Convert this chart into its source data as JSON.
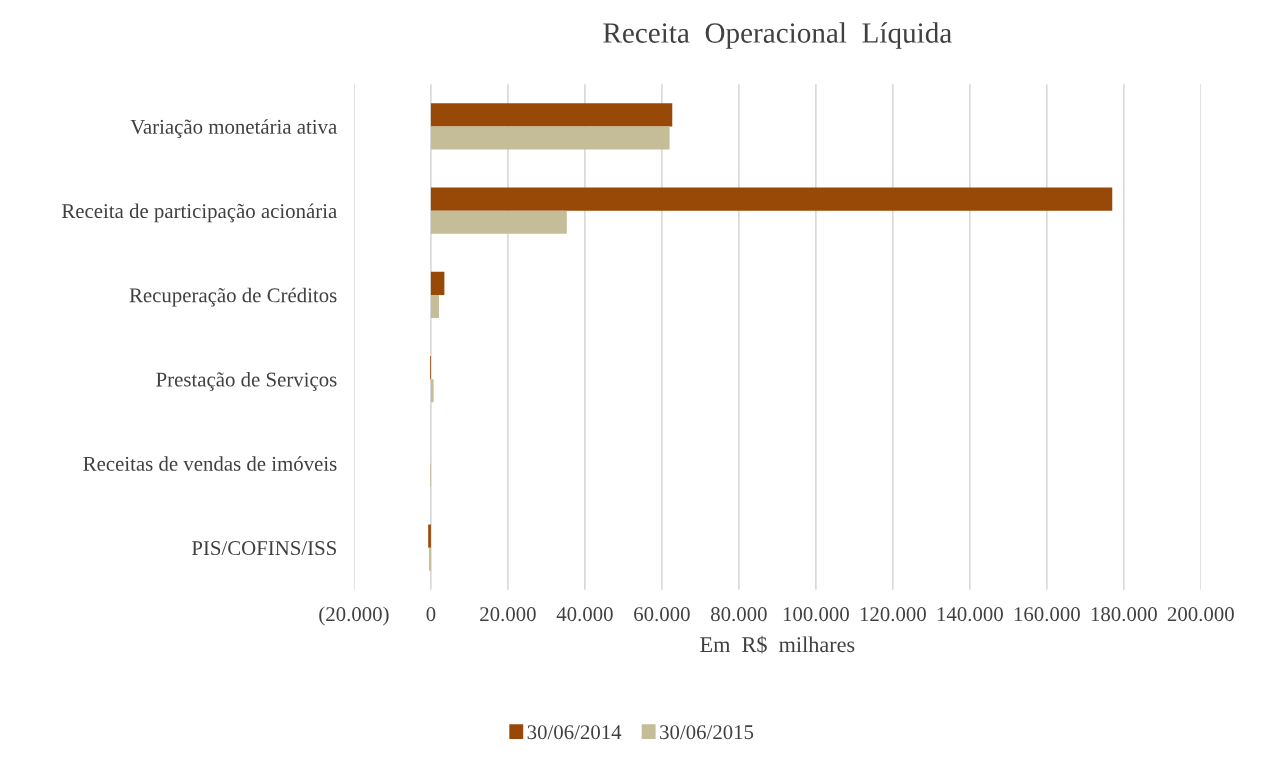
{
  "chart_data": {
    "type": "bar",
    "orientation": "horizontal",
    "title": "Receita  Operacional  Líquida",
    "xlabel": "Em  R$  milhares",
    "categories": [
      "Variação monetária ativa",
      "Receita de participação acionária",
      "Recuperação de Créditos",
      "Prestação de Serviços",
      "Receitas de vendas de imóveis",
      "PIS/COFINS/ISS"
    ],
    "series": [
      {
        "name": "30/06/2014",
        "color": "#984807",
        "values": [
          62700,
          177000,
          3500,
          -200,
          0,
          -700
        ]
      },
      {
        "name": "30/06/2015",
        "color": "#c4bd97",
        "values": [
          62000,
          35300,
          2100,
          700,
          -200,
          -500
        ]
      }
    ],
    "xlim": [
      -20000,
      200000
    ],
    "xticks": [
      {
        "value": -20000,
        "label": "(20.000)"
      },
      0,
      {
        "value": 20000,
        "label": "20.000"
      },
      {
        "value": 40000,
        "label": "40.000"
      },
      {
        "value": 60000,
        "label": "60.000"
      },
      {
        "value": 80000,
        "label": "80.000"
      },
      {
        "value": 100000,
        "label": "100.000"
      },
      {
        "value": 120000,
        "label": "120.000"
      },
      {
        "value": 140000,
        "label": "140.000"
      },
      {
        "value": 160000,
        "label": "160.000"
      },
      {
        "value": 180000,
        "label": "180.000"
      },
      {
        "value": 200000,
        "label": "200.000"
      }
    ],
    "grid": "x",
    "legend": "bottom"
  }
}
